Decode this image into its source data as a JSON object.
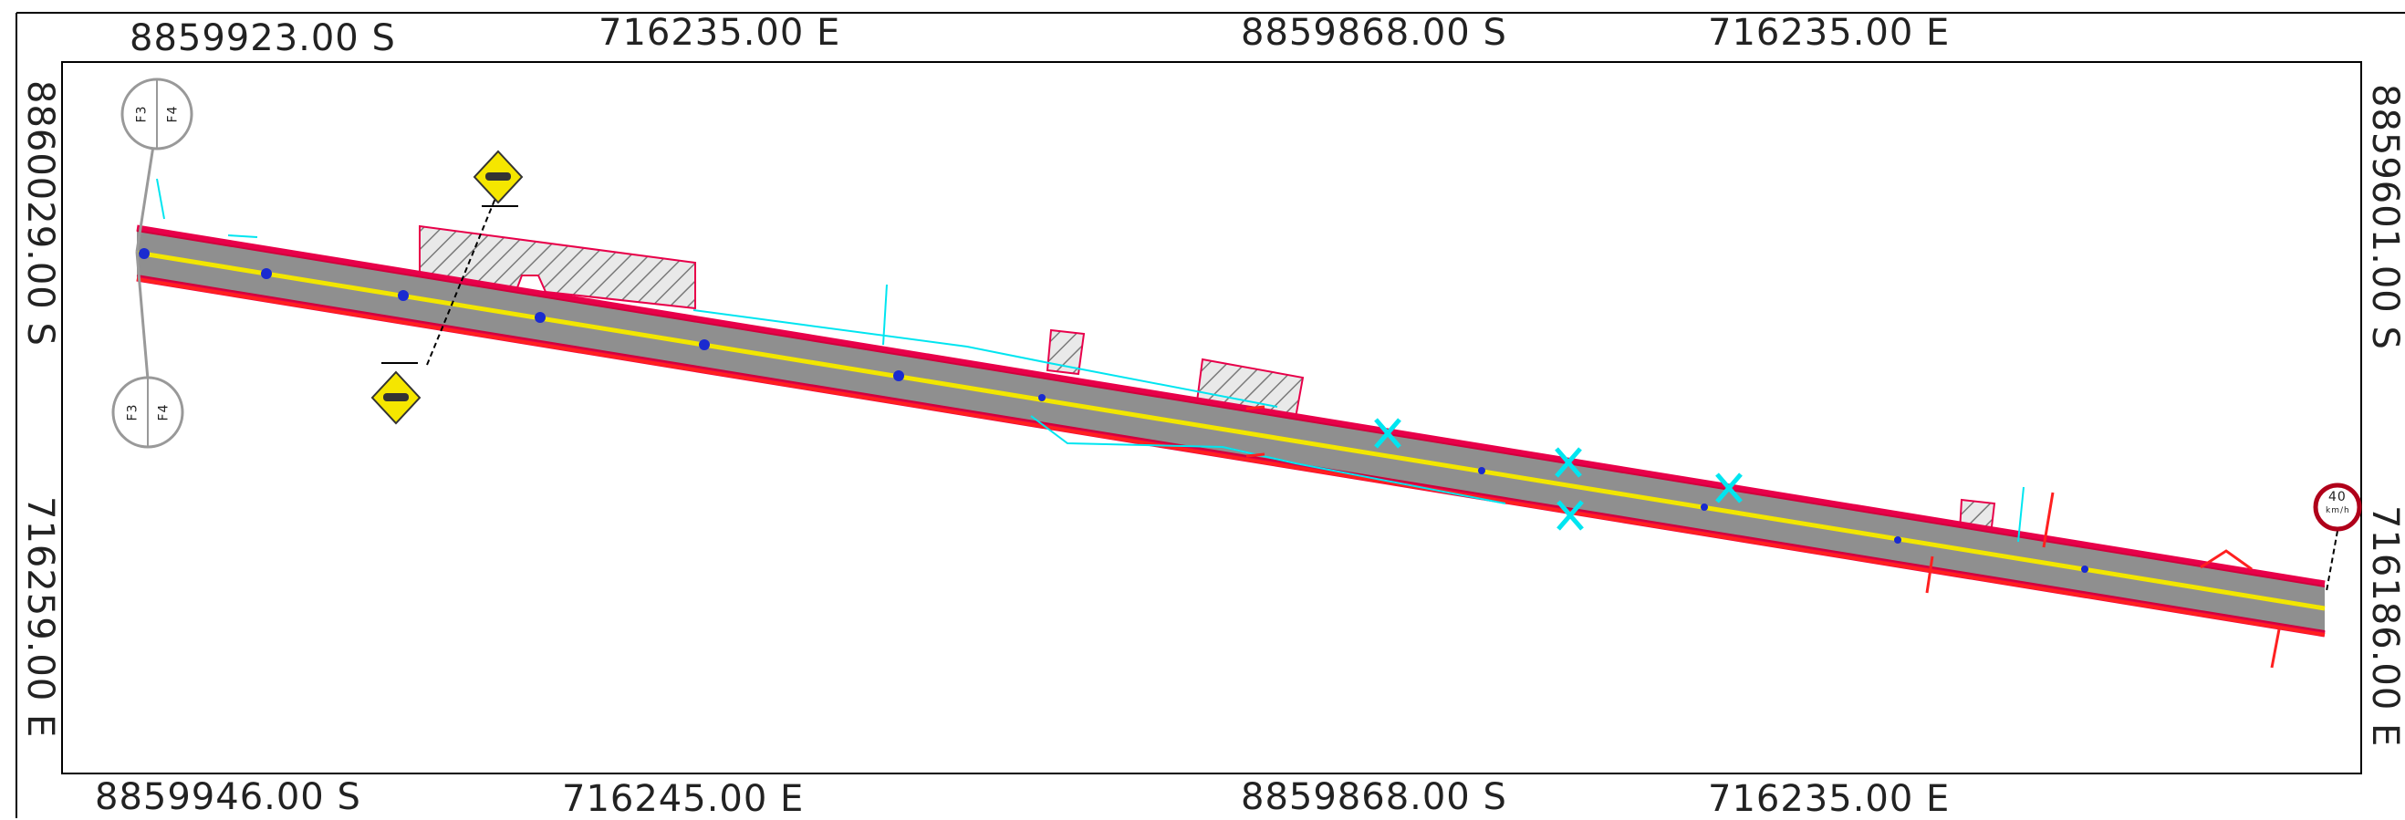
{
  "coordinates": {
    "top": [
      "8859923.00 S",
      "716235.00 E",
      "8859868.00 S",
      "716235.00 E"
    ],
    "bottom": [
      "8859946.00 S",
      "716245.00 E",
      "8859868.00 S",
      "716235.00 E"
    ],
    "left": [
      "8860029.00 S",
      "716259.00 E"
    ],
    "right": [
      "8859601.00 S",
      "716186.00 E"
    ]
  },
  "markers": {
    "top_circle": {
      "a": "F3",
      "b": "F4"
    },
    "bottom_circle": {
      "a": "F3",
      "b": "F4"
    }
  },
  "speed_sign": {
    "value": "40",
    "unit": "km/h"
  },
  "colors": {
    "road": "#8f8f8f",
    "centerline": "#f2e600",
    "edge": "#e8004a",
    "boundary": "#ff2020",
    "annotation": "#00e5f0",
    "warning_sign": "#f5e600",
    "speed_ring": "#b0001a",
    "hatch": "#9a9a9a",
    "frame": "#000000"
  },
  "icons": [
    "warning-sign-icon",
    "speed-limit-icon",
    "cross-mark-icon",
    "section-marker-icon"
  ]
}
